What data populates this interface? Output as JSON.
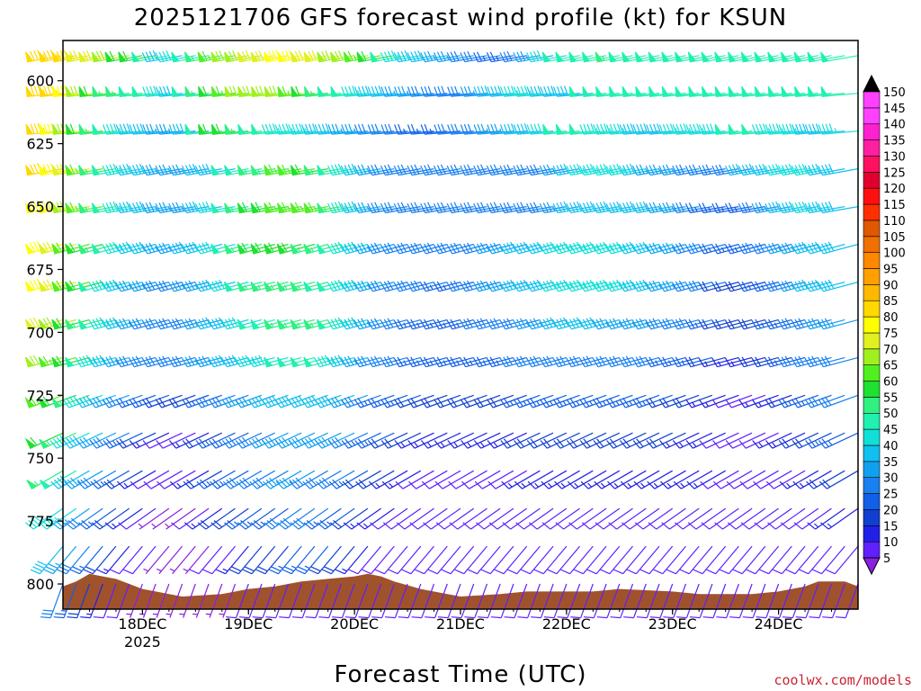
{
  "chart_data": {
    "type": "wind-barb-profile",
    "title": "2025121706 GFS forecast wind profile (kt) for KSUN",
    "xlabel": "Forecast Time (UTC)",
    "credit": "coolwx.com/models",
    "x_ticks": [
      {
        "label": "18DEC",
        "sub": "2025",
        "hours": 18
      },
      {
        "label": "19DEC",
        "sub": "",
        "hours": 42
      },
      {
        "label": "20DEC",
        "sub": "",
        "hours": 66
      },
      {
        "label": "21DEC",
        "sub": "",
        "hours": 90
      },
      {
        "label": "22DEC",
        "sub": "",
        "hours": 114
      },
      {
        "label": "23DEC",
        "sub": "",
        "hours": 138
      },
      {
        "label": "24DEC",
        "sub": "",
        "hours": 162
      }
    ],
    "x_range_hours": [
      0,
      180
    ],
    "y_ticks": [
      600,
      625,
      650,
      675,
      700,
      725,
      750,
      775,
      800
    ],
    "y_range_hpa": [
      584,
      810
    ],
    "colorbar": {
      "units": "kt",
      "levels": [
        5,
        10,
        15,
        20,
        25,
        30,
        35,
        40,
        45,
        50,
        55,
        60,
        65,
        70,
        75,
        80,
        85,
        90,
        95,
        100,
        105,
        110,
        115,
        120,
        125,
        130,
        135,
        140,
        145,
        150
      ],
      "colors": [
        "#8a20e0",
        "#6020ff",
        "#2020e8",
        "#1040d0",
        "#1060e8",
        "#1880f0",
        "#10a0f0",
        "#10c0f0",
        "#10e0d8",
        "#20f0b0",
        "#30f080",
        "#20e030",
        "#50f020",
        "#a0f020",
        "#e0f020",
        "#ffff00",
        "#ffd800",
        "#ffb800",
        "#ffa000",
        "#ff8800",
        "#f07000",
        "#e05800",
        "#ff3000",
        "#ff1010",
        "#e00030",
        "#ff1060",
        "#ff20a0",
        "#ff20d0",
        "#ff40ff",
        "#ff40ff"
      ]
    },
    "terrain_color": "#a0522d",
    "terrain_hpa": [
      {
        "h": 0,
        "p": 801
      },
      {
        "h": 3,
        "p": 799
      },
      {
        "h": 5,
        "p": 797
      },
      {
        "h": 6,
        "p": 796
      },
      {
        "h": 9,
        "p": 797
      },
      {
        "h": 12,
        "p": 798
      },
      {
        "h": 15,
        "p": 800
      },
      {
        "h": 18,
        "p": 802
      },
      {
        "h": 21,
        "p": 803
      },
      {
        "h": 24,
        "p": 804
      },
      {
        "h": 27,
        "p": 805
      },
      {
        "h": 36,
        "p": 804
      },
      {
        "h": 42,
        "p": 802
      },
      {
        "h": 48,
        "p": 801
      },
      {
        "h": 54,
        "p": 799
      },
      {
        "h": 60,
        "p": 798
      },
      {
        "h": 66,
        "p": 797
      },
      {
        "h": 69,
        "p": 796
      },
      {
        "h": 72,
        "p": 797
      },
      {
        "h": 75,
        "p": 799
      },
      {
        "h": 81,
        "p": 802
      },
      {
        "h": 87,
        "p": 804
      },
      {
        "h": 90,
        "p": 805
      },
      {
        "h": 99,
        "p": 804
      },
      {
        "h": 105,
        "p": 803
      },
      {
        "h": 111,
        "p": 803
      },
      {
        "h": 120,
        "p": 803
      },
      {
        "h": 126,
        "p": 802
      },
      {
        "h": 138,
        "p": 803
      },
      {
        "h": 144,
        "p": 804
      },
      {
        "h": 156,
        "p": 804
      },
      {
        "h": 162,
        "p": 803
      },
      {
        "h": 168,
        "p": 801
      },
      {
        "h": 171,
        "p": 799
      },
      {
        "h": 177,
        "p": 799
      },
      {
        "h": 180,
        "p": 801
      }
    ],
    "levels_hpa": [
      590,
      605,
      620,
      635,
      650,
      665,
      680,
      695,
      710,
      725,
      740,
      755,
      770,
      785,
      800
    ],
    "barb_dt_hours": 3,
    "wind_kt": {
      "590": [
        85,
        85,
        85,
        75,
        75,
        70,
        60,
        60,
        50,
        40,
        45,
        50,
        55,
        65,
        70,
        70,
        75,
        75,
        80,
        80,
        75,
        75,
        70,
        70,
        65,
        60,
        50,
        45,
        40,
        40,
        35,
        35,
        30,
        30,
        25,
        25,
        30,
        35,
        45,
        50,
        50,
        50,
        50,
        55,
        50,
        50,
        50,
        50,
        50,
        50,
        50,
        50,
        50,
        50,
        50,
        50,
        50,
        50,
        50,
        50,
        50
      ],
      "605": [
        85,
        85,
        80,
        70,
        60,
        55,
        55,
        50,
        50,
        45,
        40,
        50,
        55,
        60,
        65,
        70,
        70,
        70,
        70,
        65,
        60,
        55,
        50,
        50,
        45,
        40,
        40,
        35,
        35,
        30,
        30,
        30,
        30,
        35,
        40,
        40,
        45,
        45,
        40,
        40,
        40,
        50,
        50,
        50,
        50,
        50,
        50,
        50,
        50,
        50,
        50,
        50,
        50,
        50,
        50,
        50,
        50,
        50,
        50,
        50,
        50
      ],
      "620": [
        85,
        80,
        70,
        60,
        55,
        50,
        45,
        40,
        40,
        35,
        35,
        40,
        50,
        60,
        60,
        55,
        50,
        50,
        45,
        45,
        45,
        40,
        40,
        35,
        35,
        30,
        30,
        30,
        25,
        25,
        25,
        30,
        30,
        30,
        35,
        35,
        40,
        40,
        45,
        50,
        50,
        50,
        45,
        45,
        45,
        40,
        40,
        40,
        45,
        45,
        45,
        45,
        50,
        50,
        50,
        45,
        45,
        45,
        40,
        40,
        45
      ],
      "635": [
        85,
        80,
        75,
        65,
        55,
        50,
        45,
        40,
        40,
        35,
        35,
        35,
        40,
        40,
        50,
        50,
        55,
        55,
        65,
        65,
        60,
        55,
        50,
        45,
        40,
        35,
        30,
        30,
        30,
        30,
        30,
        30,
        30,
        30,
        30,
        30,
        30,
        30,
        30,
        35,
        40,
        45,
        45,
        45,
        45,
        40,
        35,
        35,
        35,
        30,
        30,
        30,
        30,
        40,
        40,
        40,
        45,
        45,
        45,
        40,
        40
      ],
      "650": [
        80,
        80,
        70,
        65,
        55,
        50,
        45,
        40,
        40,
        35,
        35,
        35,
        40,
        45,
        50,
        55,
        60,
        60,
        65,
        65,
        65,
        65,
        55,
        45,
        40,
        35,
        30,
        30,
        30,
        30,
        30,
        30,
        30,
        30,
        30,
        30,
        30,
        30,
        30,
        35,
        40,
        40,
        40,
        40,
        40,
        40,
        40,
        35,
        35,
        30,
        25,
        25,
        25,
        25,
        30,
        35,
        40,
        40,
        45,
        40,
        40
      ],
      "665": [
        80,
        75,
        65,
        60,
        55,
        50,
        45,
        40,
        40,
        35,
        35,
        40,
        40,
        45,
        50,
        55,
        60,
        60,
        60,
        60,
        55,
        55,
        50,
        45,
        40,
        35,
        30,
        30,
        30,
        30,
        30,
        30,
        30,
        30,
        35,
        35,
        40,
        40,
        40,
        45,
        45,
        45,
        45,
        45,
        45,
        40,
        40,
        35,
        35,
        30,
        30,
        25,
        25,
        25,
        30,
        30,
        35,
        35,
        40,
        40,
        40
      ],
      "680": [
        80,
        75,
        65,
        60,
        50,
        45,
        40,
        35,
        35,
        30,
        30,
        35,
        35,
        40,
        45,
        50,
        55,
        55,
        55,
        55,
        55,
        50,
        50,
        45,
        40,
        35,
        30,
        30,
        30,
        30,
        25,
        25,
        30,
        30,
        35,
        35,
        40,
        40,
        40,
        45,
        45,
        45,
        45,
        45,
        45,
        40,
        40,
        35,
        35,
        30,
        30,
        20,
        20,
        20,
        25,
        25,
        30,
        35,
        40,
        40,
        40
      ],
      "695": [
        75,
        70,
        60,
        55,
        50,
        45,
        40,
        35,
        30,
        30,
        30,
        30,
        35,
        40,
        40,
        45,
        50,
        50,
        55,
        55,
        55,
        55,
        50,
        45,
        40,
        35,
        30,
        30,
        25,
        25,
        25,
        25,
        25,
        30,
        30,
        30,
        30,
        35,
        35,
        40,
        40,
        40,
        40,
        35,
        35,
        35,
        35,
        30,
        30,
        30,
        25,
        20,
        20,
        20,
        20,
        25,
        25,
        30,
        30,
        35,
        35
      ],
      "710": [
        70,
        65,
        60,
        50,
        45,
        40,
        35,
        30,
        30,
        30,
        30,
        30,
        35,
        35,
        40,
        40,
        45,
        45,
        50,
        50,
        50,
        50,
        45,
        40,
        35,
        30,
        30,
        30,
        25,
        25,
        25,
        25,
        25,
        25,
        25,
        25,
        30,
        30,
        30,
        30,
        30,
        30,
        30,
        30,
        30,
        30,
        30,
        25,
        25,
        25,
        20,
        15,
        15,
        15,
        20,
        20,
        25,
        30,
        30,
        30,
        30
      ],
      "725": [
        65,
        60,
        55,
        45,
        40,
        35,
        30,
        25,
        25,
        20,
        20,
        20,
        25,
        30,
        30,
        35,
        35,
        40,
        40,
        40,
        40,
        40,
        40,
        35,
        30,
        25,
        25,
        25,
        20,
        20,
        20,
        20,
        20,
        20,
        20,
        20,
        25,
        25,
        25,
        25,
        25,
        25,
        25,
        25,
        25,
        25,
        25,
        20,
        20,
        20,
        15,
        15,
        10,
        10,
        15,
        15,
        20,
        25,
        25,
        30,
        30
      ],
      "740": [
        60,
        55,
        45,
        40,
        35,
        30,
        25,
        20,
        15,
        10,
        10,
        15,
        20,
        25,
        25,
        30,
        30,
        35,
        35,
        35,
        35,
        35,
        35,
        30,
        25,
        25,
        20,
        20,
        15,
        15,
        15,
        15,
        15,
        15,
        15,
        15,
        20,
        20,
        20,
        20,
        20,
        20,
        20,
        20,
        20,
        20,
        20,
        20,
        15,
        15,
        15,
        10,
        10,
        10,
        10,
        15,
        15,
        20,
        20,
        25,
        25
      ],
      "755": [
        55,
        50,
        40,
        35,
        30,
        25,
        20,
        15,
        10,
        10,
        10,
        15,
        20,
        25,
        25,
        30,
        30,
        30,
        35,
        35,
        30,
        30,
        30,
        25,
        20,
        20,
        15,
        15,
        10,
        10,
        10,
        10,
        10,
        10,
        10,
        10,
        15,
        15,
        15,
        15,
        15,
        15,
        15,
        15,
        15,
        15,
        15,
        15,
        15,
        15,
        15,
        10,
        10,
        10,
        10,
        10,
        10,
        15,
        15,
        20,
        20
      ],
      "770": [
        45,
        45,
        35,
        30,
        25,
        20,
        15,
        10,
        5,
        5,
        5,
        10,
        15,
        20,
        20,
        25,
        25,
        25,
        30,
        30,
        30,
        25,
        25,
        20,
        15,
        15,
        10,
        10,
        10,
        10,
        10,
        10,
        10,
        10,
        10,
        10,
        10,
        10,
        10,
        10,
        10,
        10,
        10,
        10,
        10,
        10,
        10,
        10,
        10,
        10,
        10,
        10,
        10,
        10,
        10,
        10,
        10,
        10,
        10,
        15,
        15
      ],
      "785": [
        40,
        35,
        30,
        25,
        20,
        15,
        10,
        10,
        5,
        5,
        5,
        5,
        10,
        10,
        15,
        20,
        20,
        20,
        25,
        25,
        25,
        20,
        20,
        15,
        10,
        10,
        10,
        10,
        10,
        10,
        10,
        10,
        10,
        10,
        10,
        10,
        10,
        10,
        10,
        10,
        10,
        10,
        10,
        10,
        10,
        10,
        10,
        10,
        10,
        10,
        10,
        10,
        10,
        10,
        10,
        10,
        10,
        10,
        10,
        10,
        10
      ],
      "800": [
        30,
        25,
        20,
        15,
        10,
        10,
        5,
        5,
        5,
        5,
        5,
        5,
        5,
        5,
        10,
        10,
        10,
        10,
        10,
        10,
        10,
        10,
        10,
        10,
        10,
        10,
        10,
        10,
        10,
        10,
        10,
        10,
        10,
        10,
        10,
        10,
        10,
        10,
        10,
        10,
        10,
        10,
        10,
        10,
        10,
        10,
        10,
        10,
        10,
        10,
        10,
        10,
        10,
        10,
        10,
        10,
        10,
        10,
        10,
        10,
        10
      ]
    },
    "wind_dir_deg": {
      "590": 260,
      "605": 265,
      "620": 265,
      "635": 260,
      "650": 260,
      "665": 255,
      "680": 255,
      "695": 255,
      "710": 255,
      "725": 250,
      "740": 245,
      "755": 240,
      "770": 235,
      "785": 220,
      "800": 200
    }
  }
}
